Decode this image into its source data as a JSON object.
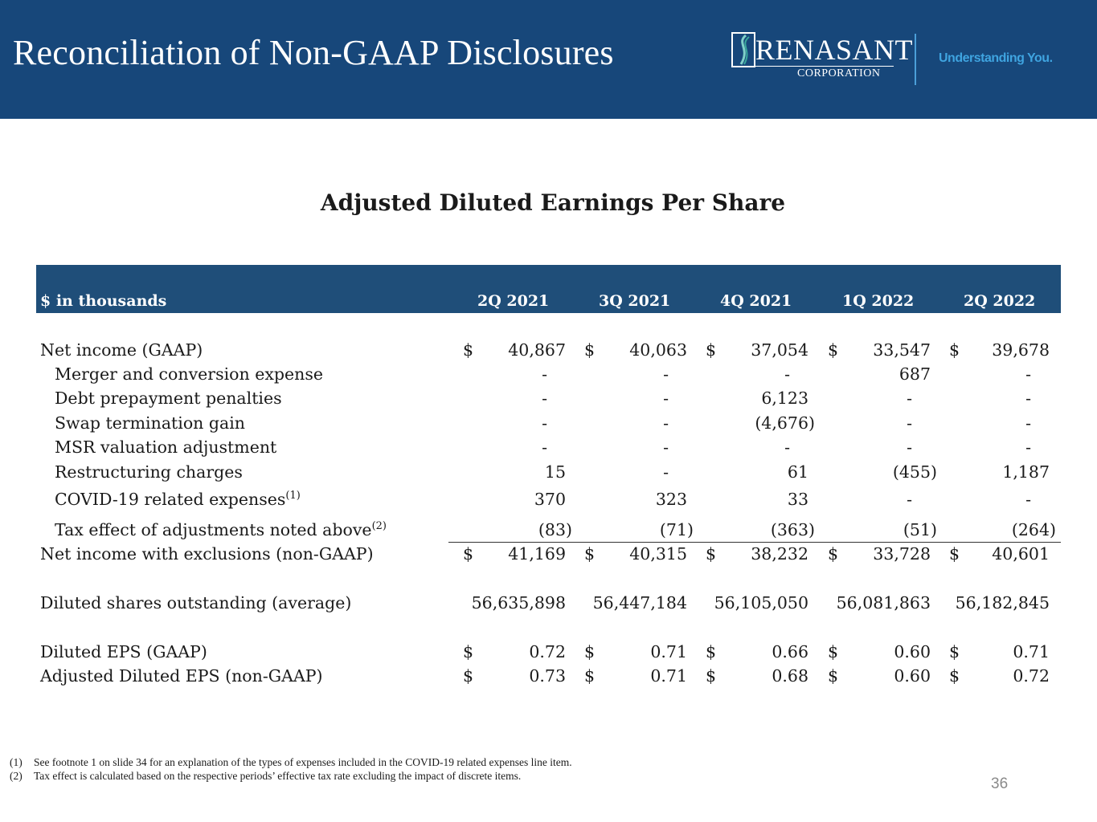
{
  "header": {
    "title": "Reconciliation of Non-GAAP Disclosures",
    "logo_text": "RENASANT",
    "logo_subtext": "CORPORATION",
    "tagline": "Understanding You."
  },
  "colors": {
    "banner": "#17477a",
    "table_header": "#1f4e79",
    "tagline": "#3fa4e0"
  },
  "table": {
    "title": "Adjusted Diluted Earnings Per Share",
    "unit_label": "$ in thousands",
    "columns": [
      "2Q 2021",
      "3Q 2021",
      "4Q 2021",
      "1Q 2022",
      "2Q 2022"
    ],
    "rows": [
      {
        "label": "Net income (GAAP)",
        "indent": false,
        "dollar": true,
        "values": [
          "40,867",
          "40,063",
          "37,054",
          "33,547",
          "39,678"
        ]
      },
      {
        "label": "Merger and conversion expense",
        "indent": true,
        "values": [
          "-",
          "-",
          "-",
          "687",
          "-"
        ]
      },
      {
        "label": "Debt prepayment penalties",
        "indent": true,
        "values": [
          "-",
          "-",
          "6,123",
          "-",
          "-"
        ]
      },
      {
        "label": "Swap termination gain",
        "indent": true,
        "values": [
          "-",
          "-",
          "(4,676)",
          "-",
          "-"
        ]
      },
      {
        "label": "MSR valuation adjustment",
        "indent": true,
        "values": [
          "-",
          "-",
          "-",
          "-",
          "-"
        ]
      },
      {
        "label": "Restructuring charges",
        "indent": true,
        "values": [
          "15",
          "-",
          "61",
          "(455)",
          "1,187"
        ]
      },
      {
        "label": "COVID-19 related expenses",
        "sup": "(1)",
        "indent": true,
        "values": [
          "370",
          "323",
          "33",
          "-",
          "-"
        ]
      },
      {
        "label": "Tax effect of adjustments noted above",
        "sup": "(2)",
        "indent": true,
        "values": [
          "(83)",
          "(71)",
          "(363)",
          "(51)",
          "(264)"
        ]
      },
      {
        "label": "Net income with exclusions (non-GAAP)",
        "indent": false,
        "dollar": true,
        "values": [
          "41,169",
          "40,315",
          "38,232",
          "33,728",
          "40,601"
        ]
      },
      {
        "label": "Diluted shares outstanding (average)",
        "indent": false,
        "values": [
          "56,635,898",
          "56,447,184",
          "56,105,050",
          "56,081,863",
          "56,182,845"
        ]
      },
      {
        "label": "Diluted EPS (GAAP)",
        "indent": false,
        "dollar": true,
        "values": [
          "0.72",
          "0.71",
          "0.66",
          "0.60",
          "0.71"
        ]
      },
      {
        "label": "Adjusted Diluted EPS (non-GAAP)",
        "indent": false,
        "dollar": true,
        "values": [
          "0.73",
          "0.71",
          "0.68",
          "0.60",
          "0.72"
        ]
      }
    ],
    "currency_symbol": "$"
  },
  "footnotes": [
    {
      "marker": "(1)",
      "text": "See footnote 1 on slide 34 for an explanation of the types of expenses included in the COVID-19 related expenses line item."
    },
    {
      "marker": "(2)",
      "text": "Tax effect is calculated based on the respective periods’ effective tax rate excluding the impact of discrete items."
    }
  ],
  "page_number": "36"
}
